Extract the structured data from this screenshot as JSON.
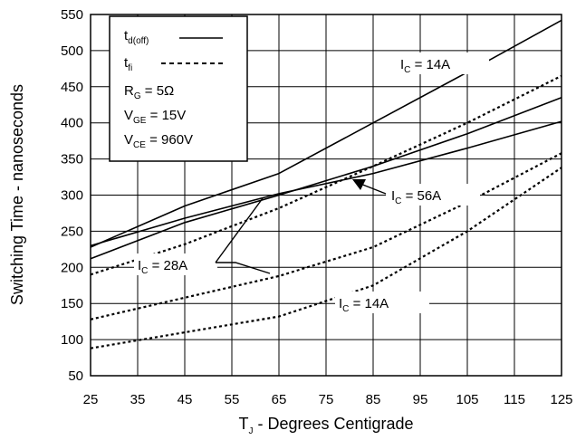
{
  "chart_data": {
    "type": "line",
    "xlabel": "T",
    "xlabel_subscript": "J",
    "xlabel_rest": " - Degrees Centigrade",
    "ylabel": "Switching Time - nanoseconds",
    "xlim": [
      25,
      125
    ],
    "ylim": [
      50,
      550
    ],
    "xticks": [
      25,
      35,
      45,
      55,
      65,
      75,
      85,
      95,
      105,
      115,
      125
    ],
    "yticks": [
      50,
      100,
      150,
      200,
      250,
      300,
      350,
      400,
      450,
      500,
      550
    ],
    "grid": true,
    "legend": {
      "placement": "top-left",
      "entries": [
        {
          "main": "t",
          "sub": "d(off)",
          "style": "solid"
        },
        {
          "main": "t",
          "sub": "fi",
          "style": "dotted"
        }
      ],
      "conditions": [
        {
          "main": "R",
          "sub": "G",
          "rest": " = 5Ω"
        },
        {
          "main": "V",
          "sub": "GE",
          "rest": " = 15V"
        },
        {
          "main": "V",
          "sub": "CE",
          "rest": " = 960V"
        }
      ]
    },
    "series": [
      {
        "label": "I_C = 14A",
        "kind": "td_off",
        "style": "solid",
        "x": [
          25,
          45,
          65,
          85,
          105,
          125
        ],
        "y": [
          228,
          285,
          330,
          400,
          470,
          542
        ]
      },
      {
        "label": "I_C = 28A",
        "kind": "td_off",
        "style": "solid",
        "x": [
          25,
          45,
          65,
          85,
          105,
          125
        ],
        "y": [
          212,
          262,
          300,
          340,
          385,
          435
        ]
      },
      {
        "label": "I_C = 56A",
        "kind": "td_off",
        "style": "solid",
        "x": [
          25,
          45,
          65,
          85,
          105,
          125
        ],
        "y": [
          230,
          268,
          302,
          330,
          365,
          402
        ]
      },
      {
        "label": "I_C = 56A",
        "kind": "tfi",
        "style": "dotted",
        "x": [
          25,
          45,
          65,
          85,
          105,
          125
        ],
        "y": [
          190,
          232,
          282,
          340,
          400,
          465
        ]
      },
      {
        "label": "I_C = 28A",
        "kind": "tfi",
        "style": "dotted",
        "x": [
          25,
          45,
          65,
          85,
          105,
          125
        ],
        "y": [
          128,
          158,
          188,
          228,
          290,
          358
        ]
      },
      {
        "label": "I_C = 14A",
        "kind": "tfi",
        "style": "dotted",
        "x": [
          25,
          45,
          65,
          85,
          105,
          125
        ],
        "y": [
          88,
          110,
          132,
          175,
          250,
          338
        ]
      }
    ],
    "annotations": [
      {
        "main": "I",
        "sub": "C",
        "rest": " = 14A"
      },
      {
        "main": "I",
        "sub": "C",
        "rest": " = 56A"
      },
      {
        "main": "I",
        "sub": "C",
        "rest": " = 28A"
      },
      {
        "main": "I",
        "sub": "C",
        "rest": " = 14A"
      }
    ]
  }
}
